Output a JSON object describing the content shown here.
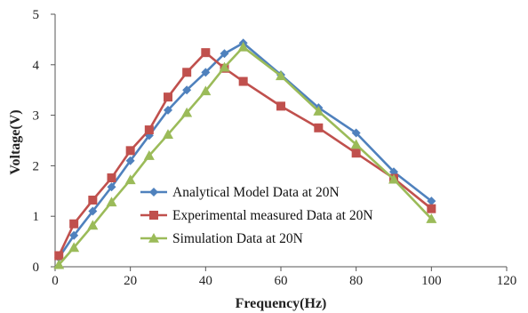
{
  "chart_data": {
    "type": "line",
    "xlabel": "Frequency(Hz)",
    "ylabel": "Voltage(V)",
    "xlim": [
      0,
      120
    ],
    "ylim": [
      0,
      5
    ],
    "xticks": [
      0,
      20,
      40,
      60,
      80,
      100,
      120
    ],
    "yticks": [
      0,
      1,
      2,
      3,
      4,
      5
    ],
    "grid": false,
    "legend_position": "center-bottom",
    "series": [
      {
        "name": "Analytical Model Data at 20N",
        "color": "#4f81bd",
        "marker": "diamond",
        "x": [
          1,
          5,
          10,
          15,
          20,
          25,
          30,
          35,
          40,
          45,
          50,
          60,
          70,
          80,
          90,
          100
        ],
        "y": [
          0.18,
          0.62,
          1.1,
          1.58,
          2.1,
          2.6,
          3.1,
          3.5,
          3.85,
          4.22,
          4.43,
          3.8,
          3.15,
          2.65,
          1.88,
          1.3
        ]
      },
      {
        "name": "Experimental measured Data at 20N",
        "color": "#c0504d",
        "marker": "square",
        "x": [
          1,
          5,
          10,
          15,
          20,
          25,
          30,
          35,
          40,
          45,
          50,
          60,
          70,
          80,
          90,
          100
        ],
        "y": [
          0.22,
          0.85,
          1.32,
          1.76,
          2.3,
          2.71,
          3.36,
          3.85,
          4.24,
          3.93,
          3.67,
          3.18,
          2.75,
          2.25,
          1.75,
          1.15
        ]
      },
      {
        "name": "Simulation Data at 20N",
        "color": "#9bbb59",
        "marker": "triangle",
        "x": [
          1,
          5,
          10,
          15,
          20,
          25,
          30,
          35,
          40,
          45,
          50,
          60,
          70,
          80,
          90,
          100
        ],
        "y": [
          0.04,
          0.38,
          0.82,
          1.28,
          1.72,
          2.2,
          2.62,
          3.05,
          3.48,
          3.95,
          4.35,
          3.78,
          3.08,
          2.42,
          1.73,
          0.95
        ]
      }
    ]
  }
}
